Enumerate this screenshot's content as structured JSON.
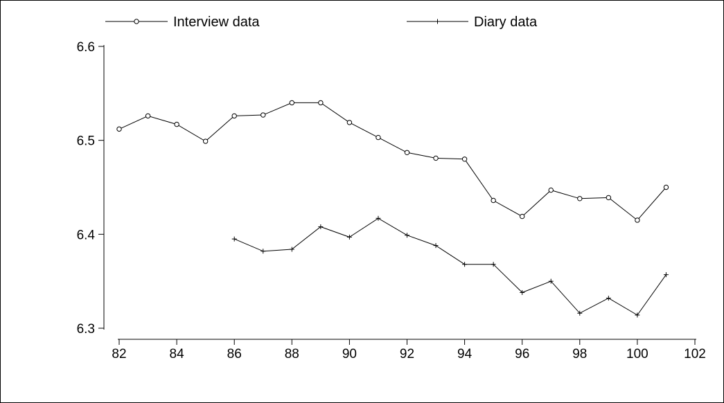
{
  "chart_data": {
    "type": "line",
    "title": "",
    "xlabel": "",
    "ylabel": "",
    "xlim": [
      82,
      102
    ],
    "ylim": [
      6.3,
      6.6
    ],
    "xticks": [
      82,
      84,
      86,
      88,
      90,
      92,
      94,
      96,
      98,
      100,
      102
    ],
    "yticks": [
      6.3,
      6.4,
      6.5,
      6.6
    ],
    "grid": false,
    "legend_position": "top",
    "series": [
      {
        "name": "Interview data",
        "marker": "circle",
        "x": [
          82,
          83,
          84,
          85,
          86,
          87,
          88,
          89,
          90,
          91,
          92,
          93,
          94,
          95,
          96,
          97,
          98,
          99,
          100,
          101
        ],
        "y": [
          6.512,
          6.526,
          6.517,
          6.499,
          6.526,
          6.527,
          6.54,
          6.54,
          6.519,
          6.503,
          6.487,
          6.481,
          6.48,
          6.436,
          6.419,
          6.447,
          6.438,
          6.439,
          6.415,
          6.45
        ]
      },
      {
        "name": "Diary data",
        "marker": "plus",
        "x": [
          86,
          87,
          88,
          89,
          90,
          91,
          92,
          93,
          94,
          95,
          96,
          97,
          98,
          99,
          100,
          101
        ],
        "y": [
          6.395,
          6.382,
          6.384,
          6.408,
          6.397,
          6.417,
          6.399,
          6.388,
          6.368,
          6.368,
          6.338,
          6.35,
          6.316,
          6.332,
          6.314,
          6.357
        ]
      }
    ]
  }
}
